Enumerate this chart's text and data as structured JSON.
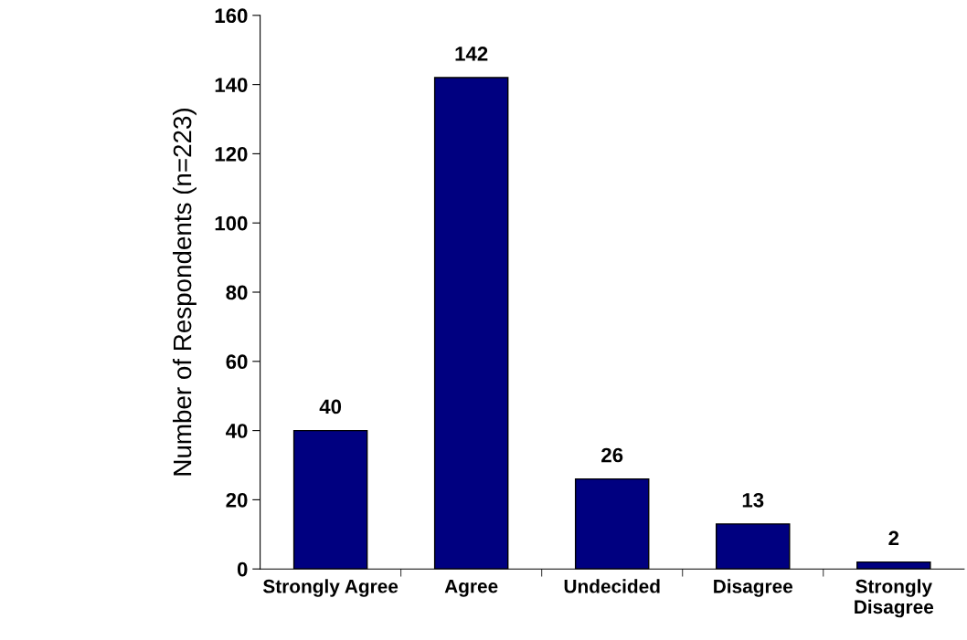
{
  "chart_data": {
    "type": "bar",
    "ylabel": "Number of Respondents (n=223)",
    "categories": [
      "Strongly Agree",
      "Agree",
      "Undecided",
      "Disagree",
      "Strongly\nDisagree"
    ],
    "values": [
      40,
      142,
      26,
      13,
      2
    ],
    "color": "#000080",
    "ylim": [
      0,
      160
    ],
    "yticks": [
      0,
      20,
      40,
      60,
      80,
      100,
      120,
      140,
      160
    ],
    "data_labels": true,
    "grid": false,
    "legend": false
  }
}
